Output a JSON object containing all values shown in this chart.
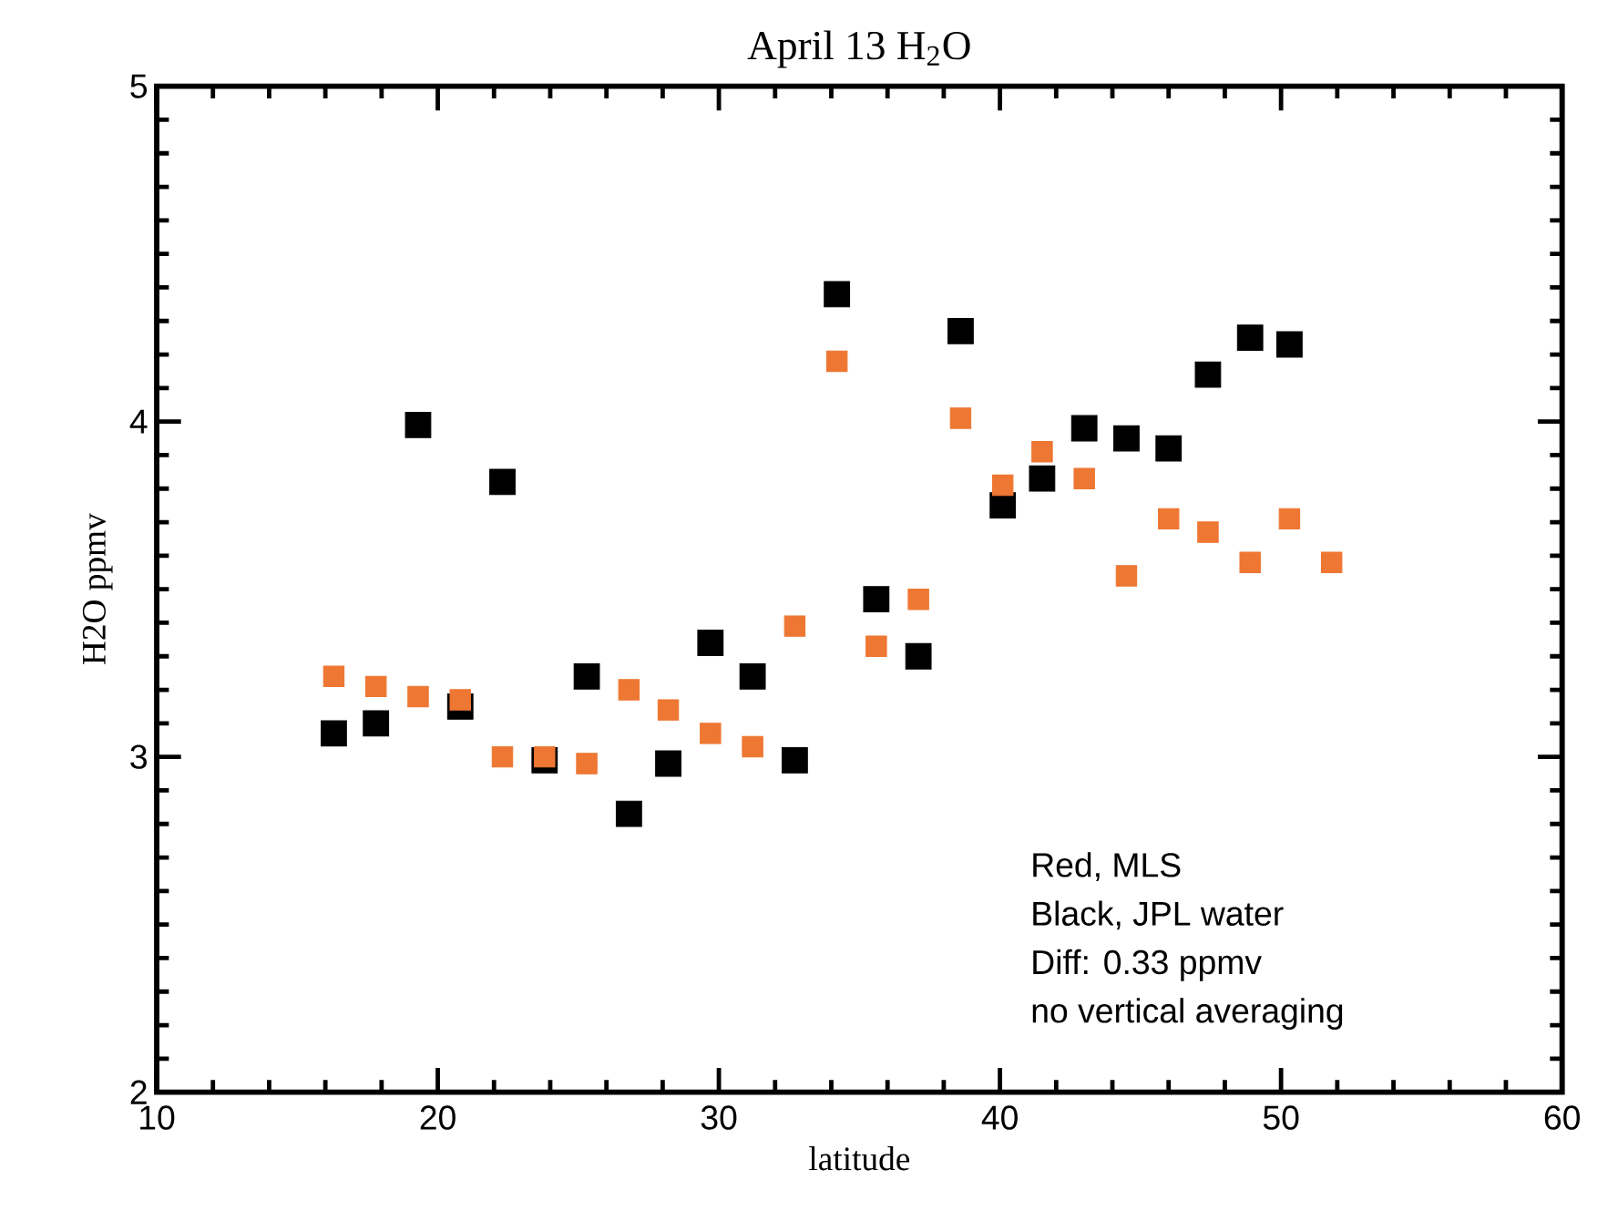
{
  "chart_data": {
    "type": "scatter",
    "title": "April 13 H$_{2}$O",
    "xlabel": "latitude",
    "ylabel": "H2O ppmv",
    "xlim": [
      10,
      60
    ],
    "xticks": [
      10,
      20,
      30,
      40,
      50,
      60
    ],
    "ylim": [
      2,
      5
    ],
    "yticks": [
      2,
      3,
      4,
      5
    ],
    "marker": "square",
    "annotations": [
      "Red, MLS",
      "Black, JPL water",
      "Diff: 0.33 ppmv",
      "no vertical averaging"
    ],
    "series": [
      {
        "color": "#000000",
        "x": [
          16.3,
          17.8,
          19.3,
          20.8,
          22.3,
          23.8,
          25.3,
          26.8,
          28.2,
          29.7,
          31.2,
          32.7,
          34.2,
          35.6,
          37.1,
          38.6,
          40.1,
          41.5,
          43.0,
          44.5,
          46.0,
          47.4,
          48.9,
          50.3
        ],
        "values": [
          3.07,
          3.1,
          3.99,
          3.15,
          3.82,
          2.99,
          3.24,
          2.83,
          2.98,
          3.34,
          3.24,
          2.99,
          4.38,
          3.47,
          3.3,
          4.27,
          3.75,
          3.83,
          3.98,
          3.95,
          3.92,
          4.14,
          4.25,
          4.23
        ]
      },
      {
        "color": "#ee7733",
        "x": [
          16.3,
          17.8,
          19.3,
          20.8,
          22.3,
          23.8,
          25.3,
          26.8,
          28.2,
          29.7,
          31.2,
          32.7,
          34.2,
          35.6,
          37.1,
          38.6,
          40.1,
          41.5,
          43.0,
          44.5,
          46.0,
          47.4,
          48.9,
          50.3,
          51.8
        ],
        "values": [
          3.24,
          3.21,
          3.18,
          3.17,
          3.0,
          3.0,
          2.98,
          3.2,
          3.14,
          3.07,
          3.03,
          3.39,
          4.18,
          3.33,
          3.47,
          4.01,
          3.81,
          3.91,
          3.83,
          3.54,
          3.71,
          3.67,
          3.58,
          3.71,
          3.58
        ]
      }
    ]
  }
}
